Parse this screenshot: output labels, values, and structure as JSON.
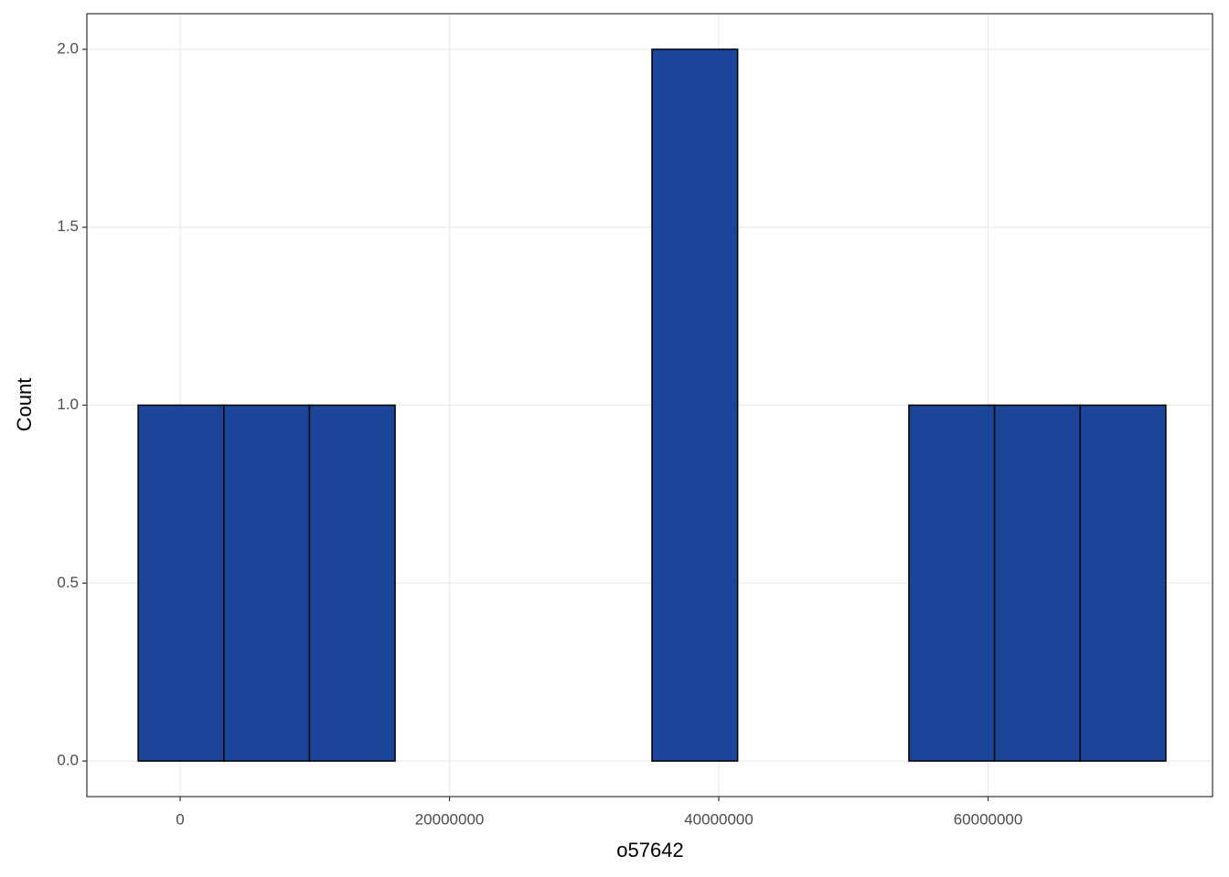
{
  "chart_data": {
    "type": "histogram",
    "x_label": "o57642",
    "y_label": "Count",
    "bins": [
      -3120000,
      3240000,
      9600000,
      15960000,
      22320000,
      28680000,
      35040000,
      41400000,
      47760000,
      54120000,
      60480000,
      66840000,
      73200000
    ],
    "values": [
      1,
      1,
      1,
      0,
      0,
      0,
      2,
      0,
      0,
      1,
      1,
      1
    ],
    "color": "#1a4599",
    "xlim": [
      -6930000,
      76670000
    ],
    "xticks": [
      0,
      20000000,
      40000000,
      60000000
    ],
    "ylim": [
      -0.1,
      2.1
    ],
    "yticks": [
      {
        "value": 0,
        "label": "0.0"
      },
      {
        "value": 0.5,
        "label": "0.5"
      },
      {
        "value": 1,
        "label": "1.0"
      },
      {
        "value": 1.5,
        "label": "1.5"
      },
      {
        "value": 2,
        "label": "2.0"
      }
    ],
    "grid": true
  }
}
